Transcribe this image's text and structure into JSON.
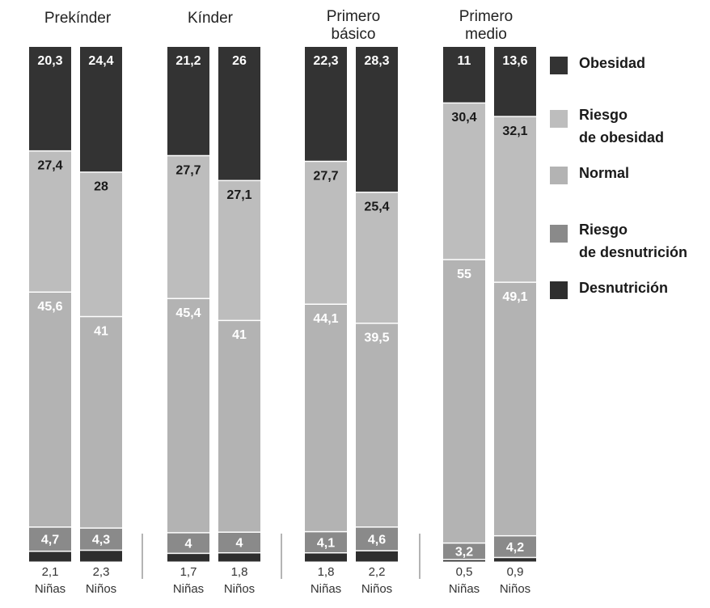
{
  "chart_data": {
    "type": "bar",
    "stacked": true,
    "categories": [
      "Prekínder",
      "Kínder",
      "Primero básico",
      "Primero medio"
    ],
    "category_title_lines": [
      [
        "Prekínder"
      ],
      [
        "Kínder"
      ],
      [
        "Primero",
        "básico"
      ],
      [
        "Primero",
        "medio"
      ]
    ],
    "groups": [
      "Niñas",
      "Niños"
    ],
    "bars": [
      {
        "category": "Prekínder",
        "group": "Niñas",
        "values": {
          "obesidad": 20.3,
          "riesgo_obesidad": 27.4,
          "normal": 45.6,
          "riesgo_desnutricion": 4.7,
          "desnutricion": 2.1
        },
        "labels": {
          "obesidad": "20,3",
          "riesgo_obesidad": "27,4",
          "normal": "45,6",
          "riesgo_desnutricion": "4,7",
          "desnutricion": "2,1"
        }
      },
      {
        "category": "Prekínder",
        "group": "Niños",
        "values": {
          "obesidad": 24.4,
          "riesgo_obesidad": 28,
          "normal": 41,
          "riesgo_desnutricion": 4.3,
          "desnutricion": 2.3
        },
        "labels": {
          "obesidad": "24,4",
          "riesgo_obesidad": "28",
          "normal": "41",
          "riesgo_desnutricion": "4,3",
          "desnutricion": "2,3"
        }
      },
      {
        "category": "Kínder",
        "group": "Niñas",
        "values": {
          "obesidad": 21.2,
          "riesgo_obesidad": 27.7,
          "normal": 45.4,
          "riesgo_desnutricion": 4,
          "desnutricion": 1.7
        },
        "labels": {
          "obesidad": "21,2",
          "riesgo_obesidad": "27,7",
          "normal": "45,4",
          "riesgo_desnutricion": "4",
          "desnutricion": "1,7"
        }
      },
      {
        "category": "Kínder",
        "group": "Niños",
        "values": {
          "obesidad": 26,
          "riesgo_obesidad": 27.1,
          "normal": 41,
          "riesgo_desnutricion": 4,
          "desnutricion": 1.8
        },
        "labels": {
          "obesidad": "26",
          "riesgo_obesidad": "27,1",
          "normal": "41",
          "riesgo_desnutricion": "4",
          "desnutricion": "1,8"
        }
      },
      {
        "category": "Primero básico",
        "group": "Niñas",
        "values": {
          "obesidad": 22.3,
          "riesgo_obesidad": 27.7,
          "normal": 44.1,
          "riesgo_desnutricion": 4.1,
          "desnutricion": 1.8
        },
        "labels": {
          "obesidad": "22,3",
          "riesgo_obesidad": "27,7",
          "normal": "44,1",
          "riesgo_desnutricion": "4,1",
          "desnutricion": "1,8"
        }
      },
      {
        "category": "Primero básico",
        "group": "Niños",
        "values": {
          "obesidad": 28.3,
          "riesgo_obesidad": 25.4,
          "normal": 39.5,
          "riesgo_desnutricion": 4.6,
          "desnutricion": 2.2
        },
        "labels": {
          "obesidad": "28,3",
          "riesgo_obesidad": "25,4",
          "normal": "39,5",
          "riesgo_desnutricion": "4,6",
          "desnutricion": "2,2"
        }
      },
      {
        "category": "Primero medio",
        "group": "Niñas",
        "values": {
          "obesidad": 11,
          "riesgo_obesidad": 30.4,
          "normal": 55,
          "riesgo_desnutricion": 3.2,
          "desnutricion": 0.5
        },
        "labels": {
          "obesidad": "11",
          "riesgo_obesidad": "30,4",
          "normal": "55",
          "riesgo_desnutricion": "3,2",
          "desnutricion": "0,5"
        }
      },
      {
        "category": "Primero medio",
        "group": "Niños",
        "values": {
          "obesidad": 13.6,
          "riesgo_obesidad": 32.1,
          "normal": 49.1,
          "riesgo_desnutricion": 4.2,
          "desnutricion": 0.9
        },
        "labels": {
          "obesidad": "13,6",
          "riesgo_obesidad": "32,1",
          "normal": "49,1",
          "riesgo_desnutricion": "4,2",
          "desnutricion": "0,9"
        }
      }
    ],
    "legend": {
      "placement": "right",
      "entries": [
        {
          "key": "obesidad",
          "lines": [
            "Obesidad"
          ]
        },
        {
          "key": "riesgo_obesidad",
          "lines": [
            "Riesgo",
            "de obesidad"
          ]
        },
        {
          "key": "normal",
          "lines": [
            "Normal"
          ]
        },
        {
          "key": "riesgo_desnutricion",
          "lines": [
            "Riesgo",
            "de desnutrición"
          ]
        },
        {
          "key": "desnutricion",
          "lines": [
            "Desnutrición"
          ]
        }
      ]
    },
    "colors": {
      "obesidad": "#333333",
      "riesgo_obesidad": "#bdbdbd",
      "normal": "#b3b3b3",
      "riesgo_desnutricion": "#8a8a8a",
      "desnutricion": "#2e2e2e"
    },
    "label_colors": {
      "obesidad": "#ffffff",
      "riesgo_obesidad": "#1a1a1a",
      "normal": "#ffffff",
      "riesgo_desnutricion": "#ffffff"
    }
  }
}
